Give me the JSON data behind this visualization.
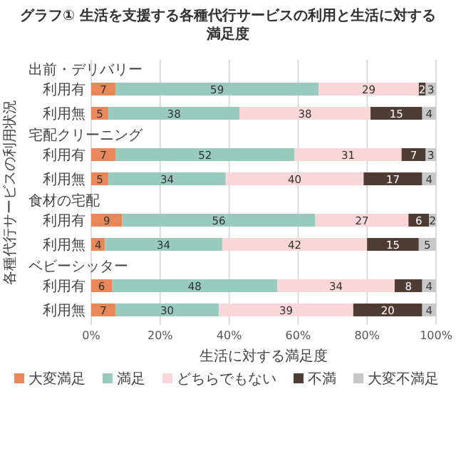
{
  "chart_data": {
    "type": "bar",
    "orientation": "horizontal",
    "stacked": true,
    "title": "グラフ① 生活を支援する各種代行サービスの利用と生活に対する満足度",
    "xlabel": "生活に対する満足度",
    "ylabel": "各種代行サービスの利用状況",
    "categories": [
      "利用有",
      "利用無",
      "利用有",
      "利用無",
      "利用有",
      "利用無",
      "利用有",
      "利用無"
    ],
    "annotations": [
      "出前・デリバリー",
      "宅配クリーニング",
      "食材の宅配",
      "ベビーシッター"
    ],
    "series": [
      {
        "name": "大変満足",
        "color": "#e8875a",
        "values": [
          7,
          5,
          7,
          5,
          9,
          4,
          6,
          7
        ]
      },
      {
        "name": "満足",
        "color": "#98cbbd",
        "values": [
          59,
          38,
          52,
          34,
          56,
          34,
          48,
          30
        ]
      },
      {
        "name": "どちらでもない",
        "color": "#f9d6d8",
        "values": [
          29,
          38,
          31,
          40,
          27,
          42,
          34,
          39
        ]
      },
      {
        "name": "不満",
        "color": "#4f3d35",
        "values": [
          2,
          15,
          7,
          17,
          6,
          15,
          8,
          20
        ]
      },
      {
        "name": "大変不満足",
        "color": "#c8c8c8",
        "values": [
          3,
          4,
          3,
          4,
          2,
          5,
          4,
          4
        ]
      }
    ],
    "xlim": [
      0,
      100
    ],
    "xticks": [
      {
        "value": 0,
        "label": "0%"
      },
      {
        "value": 20,
        "label": "20%"
      },
      {
        "value": 40,
        "label": "40%"
      },
      {
        "value": 60,
        "label": "60%"
      },
      {
        "value": 80,
        "label": "80%"
      },
      {
        "value": 100,
        "label": "100%"
      }
    ],
    "grid": "x",
    "legend": "bottom",
    "data_labels": true
  }
}
